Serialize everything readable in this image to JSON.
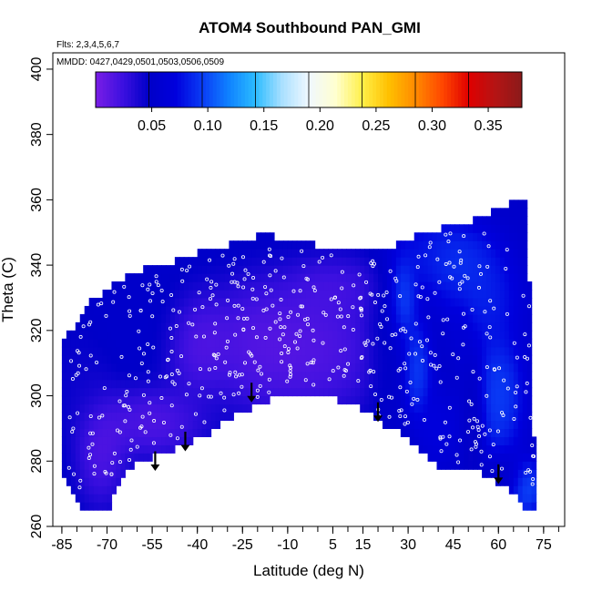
{
  "chart_data": {
    "type": "heatmap",
    "title": "ATOM4 Southbound PAN_GMI",
    "flights_note": "Flts: 2,3,4,5,6,7",
    "dates_note": "MMDD: 0427,0429,0501,0503,0506,0509",
    "xlabel": "Latitude (deg N)",
    "ylabel": "Theta (C)",
    "xlim": [
      -88,
      82
    ],
    "ylim": [
      260,
      405
    ],
    "x_ticks": [
      -85,
      -70,
      -55,
      -40,
      -25,
      -10,
      5,
      15,
      30,
      45,
      60,
      75
    ],
    "y_ticks": [
      260,
      280,
      300,
      320,
      340,
      360,
      380,
      400
    ],
    "colorbar": {
      "ticks": [
        0.05,
        0.1,
        0.15,
        0.2,
        0.25,
        0.3,
        0.35
      ],
      "tick_labels": [
        "0.05",
        "0.10",
        "0.15",
        "0.20",
        "0.25",
        "0.30",
        "0.35"
      ],
      "range": [
        0.0,
        0.38
      ],
      "colors": [
        "#7a1ee6",
        "#3d10e0",
        "#0000c8",
        "#0000dd",
        "#0a3cf5",
        "#0f82ff",
        "#2cbcff",
        "#aae0ff",
        "#f0f8ff",
        "#ffffd0",
        "#fff04a",
        "#ffc000",
        "#ff8a00",
        "#ff4800",
        "#e00000",
        "#b41414",
        "#8b1a1a"
      ]
    },
    "upper_boundary": [
      [
        -85,
        318
      ],
      [
        -80,
        322
      ],
      [
        -75,
        330
      ],
      [
        -70,
        332
      ],
      [
        -65,
        336
      ],
      [
        -60,
        338
      ],
      [
        -55,
        340
      ],
      [
        -50,
        340
      ],
      [
        -45,
        342
      ],
      [
        -40,
        344
      ],
      [
        -35,
        345
      ],
      [
        -30,
        346
      ],
      [
        -25,
        347
      ],
      [
        -20,
        349
      ],
      [
        -15,
        349
      ],
      [
        -10,
        347
      ],
      [
        -5,
        347
      ],
      [
        0,
        346
      ],
      [
        5,
        345
      ],
      [
        10,
        344
      ],
      [
        15,
        344
      ],
      [
        20,
        344
      ],
      [
        25,
        346
      ],
      [
        30,
        348
      ],
      [
        35,
        350
      ],
      [
        40,
        351
      ],
      [
        45,
        352
      ],
      [
        50,
        353
      ],
      [
        55,
        355
      ],
      [
        60,
        357
      ],
      [
        64,
        359
      ],
      [
        67,
        360
      ],
      [
        69,
        360
      ],
      [
        70,
        345
      ],
      [
        71,
        300
      ],
      [
        72,
        283
      ],
      [
        73,
        265
      ]
    ],
    "lower_boundary": [
      [
        -85,
        278
      ],
      [
        -82,
        270
      ],
      [
        -78,
        266
      ],
      [
        -70,
        264
      ],
      [
        -68,
        270
      ],
      [
        -65,
        276
      ],
      [
        -60,
        279
      ],
      [
        -55,
        281
      ],
      [
        -50,
        283
      ],
      [
        -45,
        285
      ],
      [
        -40,
        287
      ],
      [
        -35,
        289
      ],
      [
        -30,
        293
      ],
      [
        -25,
        295
      ],
      [
        -20,
        297
      ],
      [
        -15,
        299
      ],
      [
        -10,
        301
      ],
      [
        -5,
        300
      ],
      [
        0,
        299
      ],
      [
        5,
        299
      ],
      [
        10,
        298
      ],
      [
        15,
        296
      ],
      [
        20,
        292
      ],
      [
        25,
        290
      ],
      [
        30,
        287
      ],
      [
        35,
        283
      ],
      [
        40,
        279
      ],
      [
        42,
        277
      ],
      [
        50,
        278
      ],
      [
        55,
        276
      ],
      [
        60,
        273
      ],
      [
        65,
        270
      ],
      [
        70,
        265
      ],
      [
        73,
        265
      ]
    ],
    "blobs": [
      {
        "lat": -72,
        "theta": 284,
        "value": 0.0,
        "spread": [
          7,
          14
        ]
      },
      {
        "lat": -55,
        "theta": 292,
        "value": 0.0,
        "spread": [
          14,
          9
        ]
      },
      {
        "lat": -40,
        "theta": 316,
        "value": 0.0,
        "spread": [
          9,
          12
        ]
      },
      {
        "lat": -20,
        "theta": 316,
        "value": 0.0,
        "spread": [
          15,
          16
        ]
      },
      {
        "lat": 0,
        "theta": 314,
        "value": 0.0,
        "spread": [
          18,
          16
        ]
      },
      {
        "lat": 5,
        "theta": 333,
        "value": 0.01,
        "spread": [
          14,
          8
        ]
      },
      {
        "lat": -60,
        "theta": 322,
        "value": 0.05,
        "spread": [
          14,
          12
        ]
      },
      {
        "lat": -78,
        "theta": 305,
        "value": 0.04,
        "spread": [
          8,
          14
        ]
      },
      {
        "lat": 22,
        "theta": 318,
        "value": 0.055,
        "spread": [
          5,
          22
        ]
      },
      {
        "lat": 28,
        "theta": 330,
        "value": 0.13,
        "spread": [
          4,
          11
        ]
      },
      {
        "lat": 33,
        "theta": 308,
        "value": 0.12,
        "spread": [
          4,
          12
        ]
      },
      {
        "lat": 45,
        "theta": 342,
        "value": 0.11,
        "spread": [
          12,
          10
        ]
      },
      {
        "lat": 55,
        "theta": 330,
        "value": 0.1,
        "spread": [
          10,
          12
        ]
      },
      {
        "lat": 60,
        "theta": 300,
        "value": 0.12,
        "spread": [
          7,
          16
        ]
      },
      {
        "lat": 48,
        "theta": 318,
        "value": 0.06,
        "spread": [
          3,
          9
        ]
      },
      {
        "lat": 52,
        "theta": 295,
        "value": 0.03,
        "spread": [
          3,
          15
        ]
      },
      {
        "lat": 40,
        "theta": 290,
        "value": 0.08,
        "spread": [
          6,
          10
        ]
      },
      {
        "lat": 69,
        "theta": 272,
        "value": 0.13,
        "spread": [
          5,
          7
        ]
      },
      {
        "lat": 62,
        "theta": 275,
        "value": 0.04,
        "spread": [
          6,
          6
        ]
      },
      {
        "lat": 35,
        "theta": 345,
        "value": 0.08,
        "spread": [
          8,
          8
        ]
      }
    ],
    "background_value": 0.05,
    "arrows": [
      {
        "lat": -54,
        "theta": 283
      },
      {
        "lat": -44,
        "theta": 289
      },
      {
        "lat": -22,
        "theta": 304
      },
      {
        "lat": 20,
        "theta": 298
      },
      {
        "lat": 60,
        "theta": 279
      }
    ],
    "samples": {
      "count": 520,
      "seed": 17
    }
  }
}
